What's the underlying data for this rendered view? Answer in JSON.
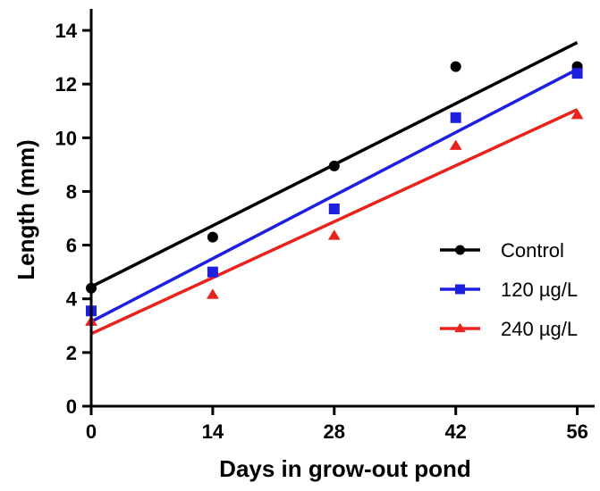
{
  "chart_data": {
    "type": "scatter",
    "xlabel": "Days in grow-out pond",
    "ylabel": "Length (mm)",
    "xlim": [
      0,
      58
    ],
    "ylim": [
      0,
      14.8
    ],
    "xticks": [
      0,
      14,
      28,
      42,
      56
    ],
    "yticks": [
      0,
      2,
      4,
      6,
      8,
      10,
      12,
      14
    ],
    "x_tick_labels": [
      "0",
      "14",
      "28",
      "42",
      "56"
    ],
    "y_tick_labels": [
      "0",
      "2",
      "4",
      "6",
      "8",
      "10",
      "12",
      "14"
    ],
    "legend_position": "right",
    "series": [
      {
        "name": "Control",
        "color": "#000000",
        "marker": "circle",
        "x": [
          0,
          14,
          28,
          42,
          56
        ],
        "y": [
          4.4,
          6.3,
          8.95,
          12.65,
          12.65
        ],
        "fit": {
          "y_at_x0": 4.45,
          "y_at_x56": 13.55
        }
      },
      {
        "name": "120 µg/L",
        "color": "#1f1fe0",
        "marker": "square",
        "x": [
          0,
          14,
          28,
          42,
          56
        ],
        "y": [
          3.55,
          5.0,
          7.35,
          10.75,
          12.4
        ],
        "fit": {
          "y_at_x0": 3.15,
          "y_at_x56": 12.55
        }
      },
      {
        "name": "240 µg/L",
        "color": "#e8221c",
        "marker": "triangle",
        "x": [
          0,
          14,
          28,
          42,
          56
        ],
        "y": [
          3.15,
          4.15,
          6.35,
          9.7,
          10.85
        ],
        "fit": {
          "y_at_x0": 2.7,
          "y_at_x56": 11.05
        }
      }
    ]
  }
}
